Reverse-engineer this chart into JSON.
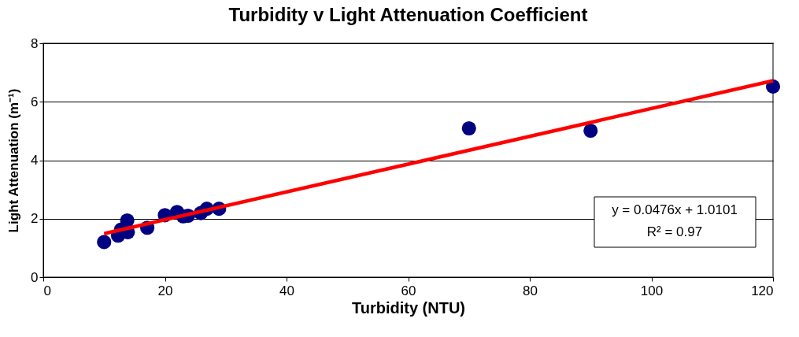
{
  "chart_data": {
    "type": "scatter",
    "title": "Turbidity v Light Attenuation Coefficient",
    "xlabel": "Turbidity (NTU)",
    "ylabel": "Light Attenuation (m⁻¹)",
    "x": [
      10,
      12.3,
      12.8,
      13.8,
      13.9,
      17.1,
      20,
      22,
      23,
      23.8,
      25.9,
      26.9,
      28.9,
      70,
      90,
      120
    ],
    "series": [
      {
        "type": "scatter",
        "color": "#000080",
        "marker": "circle",
        "values": [
          1.2,
          1.42,
          1.63,
          1.94,
          1.54,
          1.69,
          2.12,
          2.23,
          2.08,
          2.1,
          2.19,
          2.34,
          2.34,
          5.09,
          5.01,
          6.52
        ]
      },
      {
        "type": "line",
        "color": "#ff0000",
        "x": [
          10,
          120
        ],
        "values": [
          1.49,
          6.72
        ]
      }
    ],
    "xlim": [
      0,
      120
    ],
    "xticks": [
      0,
      20,
      40,
      60,
      80,
      100,
      120
    ],
    "ylim": [
      0,
      8
    ],
    "yticks": [
      0,
      2,
      4,
      6,
      8
    ],
    "grid": "y",
    "legend": false,
    "annotations": [
      "y = 0.0476x + 1.0101",
      "R² = 0.97"
    ]
  }
}
